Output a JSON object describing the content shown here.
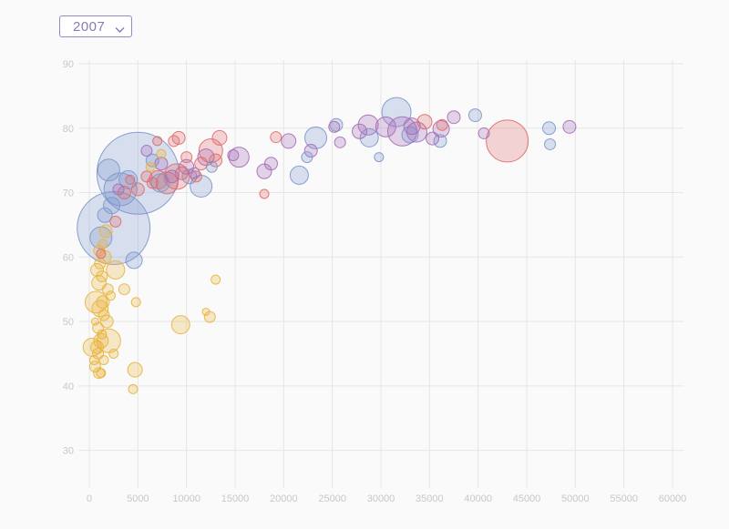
{
  "year_selector": {
    "value": "2007",
    "icon": "chevron-down-icon"
  },
  "chart_data": {
    "type": "scatter",
    "title": "",
    "xlabel": "",
    "ylabel": "",
    "xlim": [
      0,
      60000
    ],
    "ylim": [
      25,
      90
    ],
    "grid": true,
    "legend": "none",
    "x_ticks": [
      0,
      5000,
      10000,
      15000,
      20000,
      25000,
      30000,
      35000,
      40000,
      45000,
      50000,
      55000,
      60000
    ],
    "y_ticks": [
      30,
      40,
      50,
      60,
      70,
      80,
      90
    ],
    "colors": {
      "africa": "#e8b43c",
      "americas": "#e06a6a",
      "asia": "#7d96cc",
      "europe": "#a56cb8"
    },
    "series": [
      {
        "group": "africa",
        "points": [
          [
            600,
            43,
            6
          ],
          [
            800,
            46,
            7
          ],
          [
            1000,
            42,
            6
          ],
          [
            1200,
            47,
            8
          ],
          [
            900,
            49,
            6
          ],
          [
            1100,
            52,
            9
          ],
          [
            700,
            53,
            12
          ],
          [
            1400,
            53,
            7
          ],
          [
            1500,
            51,
            6
          ],
          [
            1800,
            50,
            7
          ],
          [
            1900,
            55,
            6
          ],
          [
            1000,
            56,
            8
          ],
          [
            800,
            58,
            7
          ],
          [
            1300,
            57,
            6
          ],
          [
            1600,
            60,
            7
          ],
          [
            1000,
            61,
            6
          ],
          [
            1700,
            64,
            7
          ],
          [
            900,
            45,
            6
          ],
          [
            1200,
            42,
            5
          ],
          [
            1500,
            44,
            5
          ],
          [
            2000,
            47,
            13
          ],
          [
            2700,
            58,
            10
          ],
          [
            3600,
            55,
            6
          ],
          [
            4800,
            53,
            5
          ],
          [
            4700,
            42.5,
            8
          ],
          [
            4500,
            39.5,
            5
          ],
          [
            9400,
            49.5,
            10
          ],
          [
            12000,
            51.5,
            4
          ],
          [
            12400,
            50.7,
            6
          ],
          [
            13000,
            56.5,
            5
          ],
          [
            7400,
            76,
            5
          ],
          [
            6300,
            74,
            5
          ],
          [
            300,
            46,
            10
          ],
          [
            500,
            44,
            5
          ],
          [
            1100,
            59,
            6
          ],
          [
            1300,
            48,
            5
          ],
          [
            2200,
            54,
            5
          ],
          [
            600,
            50,
            4
          ],
          [
            1400,
            62,
            5
          ],
          [
            2500,
            45,
            5
          ]
        ]
      },
      {
        "group": "americas",
        "points": [
          [
            1200,
            60.5,
            5
          ],
          [
            2700,
            65.5,
            6
          ],
          [
            3600,
            70,
            7
          ],
          [
            5000,
            70.5,
            7
          ],
          [
            5900,
            72.5,
            6
          ],
          [
            6500,
            71.5,
            6
          ],
          [
            7100,
            72,
            10
          ],
          [
            8000,
            71.5,
            12
          ],
          [
            9000,
            72.5,
            14
          ],
          [
            9500,
            73,
            7
          ],
          [
            9200,
            78.5,
            7
          ],
          [
            10000,
            75.5,
            6
          ],
          [
            11000,
            72.5,
            6
          ],
          [
            11500,
            74.5,
            7
          ],
          [
            12500,
            76.5,
            13
          ],
          [
            13000,
            75,
            7
          ],
          [
            13400,
            78.5,
            8
          ],
          [
            18000,
            69.8,
            5
          ],
          [
            19200,
            78.6,
            6
          ],
          [
            7000,
            78,
            5
          ],
          [
            34500,
            81,
            8
          ],
          [
            36300,
            80.5,
            6
          ],
          [
            43000,
            78,
            23
          ],
          [
            4200,
            72,
            5
          ],
          [
            8700,
            78,
            6
          ]
        ]
      },
      {
        "group": "asia",
        "points": [
          [
            5000,
            73,
            45
          ],
          [
            2500,
            64.5,
            40
          ],
          [
            1200,
            63,
            12
          ],
          [
            1600,
            66.5,
            8
          ],
          [
            2300,
            68,
            9
          ],
          [
            2000,
            73.5,
            12
          ],
          [
            3200,
            70.5,
            18
          ],
          [
            4000,
            72,
            10
          ],
          [
            4600,
            59.5,
            9
          ],
          [
            11500,
            71,
            12
          ],
          [
            10300,
            72.5,
            8
          ],
          [
            7300,
            71.5,
            10
          ],
          [
            6500,
            75,
            7
          ],
          [
            12600,
            74,
            6
          ],
          [
            21600,
            72.7,
            10
          ],
          [
            23300,
            78.5,
            12
          ],
          [
            25400,
            80.5,
            7
          ],
          [
            22400,
            75.5,
            6
          ],
          [
            28800,
            78.5,
            10
          ],
          [
            29800,
            75.5,
            5
          ],
          [
            31600,
            82.5,
            16
          ],
          [
            39700,
            82,
            7
          ],
          [
            47300,
            80,
            7
          ],
          [
            47400,
            77.5,
            6
          ],
          [
            36100,
            78,
            7
          ],
          [
            33000,
            79,
            9
          ]
        ]
      },
      {
        "group": "europe",
        "points": [
          [
            5900,
            76.5,
            6
          ],
          [
            7400,
            74.5,
            7
          ],
          [
            8500,
            72.5,
            7
          ],
          [
            10000,
            74,
            8
          ],
          [
            12000,
            75.5,
            9
          ],
          [
            14800,
            75.8,
            6
          ],
          [
            15400,
            75.5,
            11
          ],
          [
            18000,
            73.3,
            8
          ],
          [
            18700,
            74.5,
            7
          ],
          [
            20500,
            78,
            8
          ],
          [
            22800,
            76.5,
            7
          ],
          [
            25200,
            80.2,
            6
          ],
          [
            25800,
            77.8,
            6
          ],
          [
            27800,
            79.5,
            8
          ],
          [
            28700,
            80.5,
            11
          ],
          [
            30500,
            80.2,
            11
          ],
          [
            32200,
            79.5,
            16
          ],
          [
            33200,
            80.3,
            9
          ],
          [
            33700,
            79.4,
            11
          ],
          [
            35300,
            78.4,
            7
          ],
          [
            36200,
            79.9,
            9
          ],
          [
            37500,
            81.7,
            7
          ],
          [
            40600,
            79.2,
            6
          ],
          [
            49400,
            80.2,
            7
          ],
          [
            3000,
            70.5,
            6
          ],
          [
            10800,
            73,
            6
          ]
        ]
      }
    ]
  }
}
